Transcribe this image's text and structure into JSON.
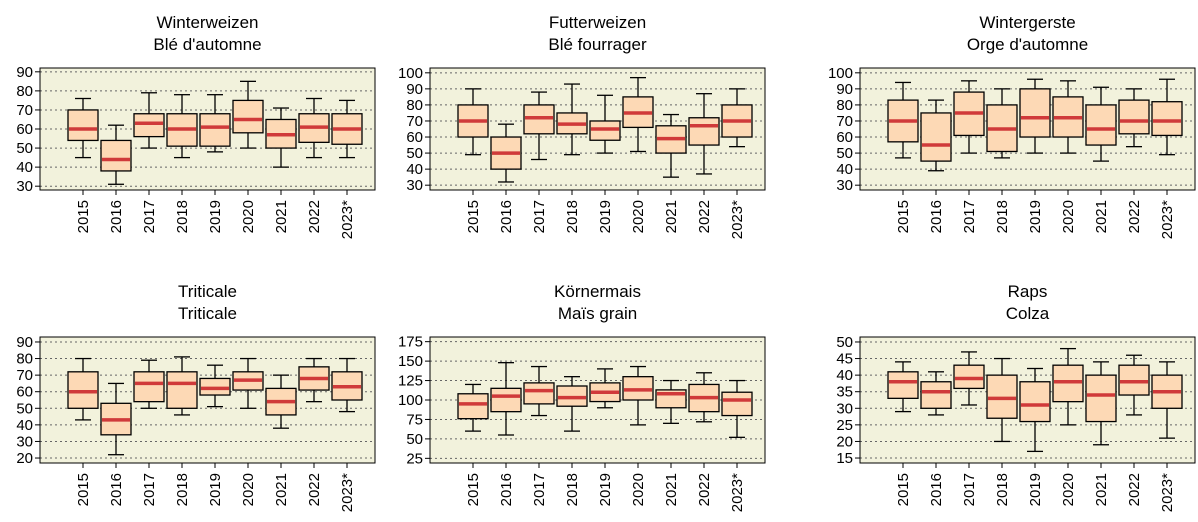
{
  "chart_data": [
    {
      "type": "box",
      "title": "Winterweizen",
      "subtitle": "Blé d'automne",
      "categories": [
        "2015",
        "2016",
        "2017",
        "2018",
        "2019",
        "2020",
        "2021",
        "2022",
        "2023*"
      ],
      "min": [
        45,
        31,
        50,
        45,
        48,
        50,
        40,
        45,
        45
      ],
      "q1": [
        54,
        38,
        56,
        51,
        51,
        58,
        50,
        53,
        52
      ],
      "median": [
        60,
        44,
        63,
        60,
        61,
        65,
        57,
        61,
        60
      ],
      "q3": [
        70,
        54,
        68,
        68,
        68,
        75,
        65,
        68,
        68
      ],
      "max": [
        76,
        62,
        79,
        78,
        78,
        85,
        71,
        76,
        75
      ],
      "ylim": [
        28,
        92
      ],
      "yticks": [
        30,
        40,
        50,
        60,
        70,
        80,
        90
      ],
      "grid": true,
      "box_color": "#fdd9b5",
      "median_color": "#d03a3a",
      "background": "#f2f2dc"
    },
    {
      "type": "box",
      "title": "Futterweizen",
      "subtitle": "Blé fourrager",
      "categories": [
        "2015",
        "2016",
        "2017",
        "2018",
        "2019",
        "2020",
        "2021",
        "2022",
        "2023*"
      ],
      "min": [
        49,
        32,
        46,
        49,
        50,
        51,
        35,
        37,
        54
      ],
      "q1": [
        60,
        40,
        62,
        62,
        58,
        66,
        50,
        55,
        60
      ],
      "median": [
        70,
        50,
        72,
        68,
        65,
        75,
        59,
        67,
        70
      ],
      "q3": [
        80,
        60,
        80,
        75,
        70,
        85,
        67,
        72,
        80
      ],
      "max": [
        90,
        68,
        88,
        93,
        86,
        97,
        74,
        87,
        90
      ],
      "ylim": [
        27,
        103
      ],
      "yticks": [
        30,
        40,
        50,
        60,
        70,
        80,
        90,
        100
      ],
      "grid": true,
      "box_color": "#fdd9b5",
      "median_color": "#d03a3a",
      "background": "#f2f2dc"
    },
    {
      "type": "box",
      "title": "Wintergerste",
      "subtitle": "Orge d'automne",
      "categories": [
        "2015",
        "2016",
        "2017",
        "2018",
        "2019",
        "2020",
        "2021",
        "2022",
        "2023*"
      ],
      "min": [
        47,
        39,
        50,
        47,
        50,
        50,
        45,
        54,
        49
      ],
      "q1": [
        57,
        45,
        61,
        51,
        60,
        60,
        55,
        62,
        61
      ],
      "median": [
        70,
        55,
        75,
        65,
        72,
        72,
        65,
        70,
        70
      ],
      "q3": [
        83,
        75,
        88,
        80,
        90,
        85,
        80,
        83,
        82
      ],
      "max": [
        94,
        83,
        95,
        90,
        96,
        95,
        91,
        90,
        96
      ],
      "ylim": [
        27,
        103
      ],
      "yticks": [
        30,
        40,
        50,
        60,
        70,
        80,
        90,
        100
      ],
      "grid": true,
      "box_color": "#fdd9b5",
      "median_color": "#d03a3a",
      "background": "#f2f2dc"
    },
    {
      "type": "box",
      "title": "Triticale",
      "subtitle": "Triticale",
      "categories": [
        "2015",
        "2016",
        "2017",
        "2018",
        "2019",
        "2020",
        "2021",
        "2022",
        "2023*"
      ],
      "min": [
        43,
        22,
        50,
        46,
        51,
        50,
        38,
        54,
        48
      ],
      "q1": [
        50,
        34,
        54,
        50,
        58,
        61,
        46,
        61,
        55
      ],
      "median": [
        60,
        43,
        65,
        65,
        62,
        67,
        54,
        68,
        63
      ],
      "q3": [
        72,
        53,
        72,
        72,
        68,
        72,
        62,
        75,
        72
      ],
      "max": [
        80,
        65,
        79,
        81,
        76,
        80,
        70,
        80,
        80
      ],
      "ylim": [
        17,
        93
      ],
      "yticks": [
        20,
        30,
        40,
        50,
        60,
        70,
        80,
        90
      ],
      "grid": true,
      "box_color": "#fdd9b5",
      "median_color": "#d03a3a",
      "background": "#f2f2dc"
    },
    {
      "type": "box",
      "title": "Körnermais",
      "subtitle": "Maïs grain",
      "categories": [
        "2015",
        "2016",
        "2017",
        "2018",
        "2019",
        "2020",
        "2021",
        "2022",
        "2023*"
      ],
      "min": [
        60,
        55,
        80,
        60,
        90,
        68,
        70,
        72,
        52
      ],
      "q1": [
        76,
        85,
        95,
        92,
        98,
        100,
        90,
        85,
        80
      ],
      "median": [
        95,
        105,
        112,
        103,
        110,
        113,
        108,
        103,
        100
      ],
      "q3": [
        108,
        115,
        122,
        118,
        122,
        130,
        113,
        120,
        110
      ],
      "max": [
        120,
        148,
        143,
        130,
        140,
        143,
        125,
        135,
        125
      ],
      "ylim": [
        19,
        181
      ],
      "yticks": [
        25,
        50,
        75,
        100,
        125,
        150,
        175
      ],
      "grid": true,
      "box_color": "#fdd9b5",
      "median_color": "#d03a3a",
      "background": "#f2f2dc"
    },
    {
      "type": "box",
      "title": "Raps",
      "subtitle": "Colza",
      "categories": [
        "2015",
        "2016",
        "2017",
        "2018",
        "2019",
        "2020",
        "2021",
        "2022",
        "2023*"
      ],
      "min": [
        29,
        28,
        31,
        20,
        17,
        25,
        19,
        28,
        21
      ],
      "q1": [
        33,
        30,
        36,
        27,
        26,
        32,
        26,
        34,
        30
      ],
      "median": [
        38,
        35,
        39,
        33,
        31,
        38,
        34,
        38,
        35
      ],
      "q3": [
        41,
        38,
        43,
        40,
        38,
        43,
        40,
        43,
        40
      ],
      "max": [
        44,
        41,
        47,
        45,
        42,
        48,
        44,
        46,
        44
      ],
      "ylim": [
        13.5,
        51.5
      ],
      "yticks": [
        15,
        20,
        25,
        30,
        35,
        40,
        45,
        50
      ],
      "grid": true,
      "box_color": "#fdd9b5",
      "median_color": "#d03a3a",
      "background": "#f2f2dc"
    }
  ]
}
